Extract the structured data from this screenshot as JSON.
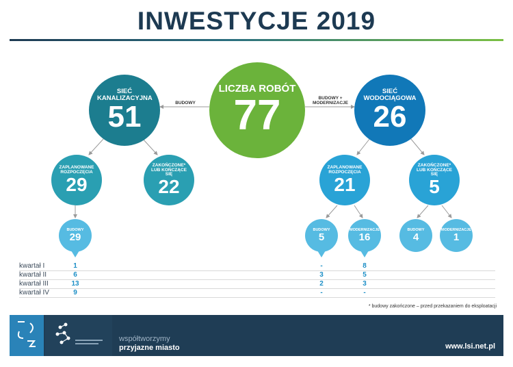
{
  "title": "INWESTYCJE 2019",
  "center": {
    "label": "LICZBA ROBÓT",
    "value": "77"
  },
  "left": {
    "label": "SIEĆ KANALIZACYJNA",
    "value": "51",
    "edge_label": "BUDOWY",
    "planned": {
      "label": "ZAPLANOWANE ROZPOCZĘCIA",
      "value": "29"
    },
    "completed": {
      "label": "ZAKOŃCZONE* LUB KOŃCZĄCE SIĘ",
      "value": "22"
    },
    "builds": {
      "label": "BUDOWY",
      "value": "29"
    }
  },
  "right": {
    "label": "SIEĆ WODOCIĄGOWA",
    "value": "26",
    "edge_label": "BUDOWY + MODERNIZACJE",
    "planned": {
      "label": "ZAPLANOWANE ROZPOCZĘCIA",
      "value": "21"
    },
    "completed": {
      "label": "ZAKOŃCZONE* LUB KOŃCZĄCE SIĘ",
      "value": "5"
    },
    "planned_builds": {
      "label": "BUDOWY",
      "value": "5"
    },
    "planned_mods": {
      "label": "MODERNIZACJE",
      "value": "16"
    },
    "completed_builds": {
      "label": "BUDOWY",
      "value": "4"
    },
    "completed_mods": {
      "label": "MODERNIZACJE",
      "value": "1"
    }
  },
  "quarters": [
    {
      "label": "kwartał I",
      "kan": "1",
      "wod_b": "-",
      "wod_m": "8"
    },
    {
      "label": "kwartał II",
      "kan": "6",
      "wod_b": "3",
      "wod_m": "5"
    },
    {
      "label": "kwartał III",
      "kan": "13",
      "wod_b": "2",
      "wod_m": "3"
    },
    {
      "label": "kwartał IV",
      "kan": "9",
      "wod_b": "-",
      "wod_m": "-"
    }
  ],
  "footnote": "* budowy zakończone – przed przekazaniem do eksploatacji",
  "footer": {
    "slogan_line1": "współtworzymy",
    "slogan_line2": "przyjazne miasto",
    "url": "www.lsi.net.pl"
  },
  "colors": {
    "green": "#6bb33b",
    "dark_teal": "#1c7d8f",
    "teal": "#2a9fb2",
    "blue": "#1178b8",
    "mid_blue": "#29a3d6",
    "light_blue": "#56bbe2",
    "navy": "#1f3d55"
  }
}
